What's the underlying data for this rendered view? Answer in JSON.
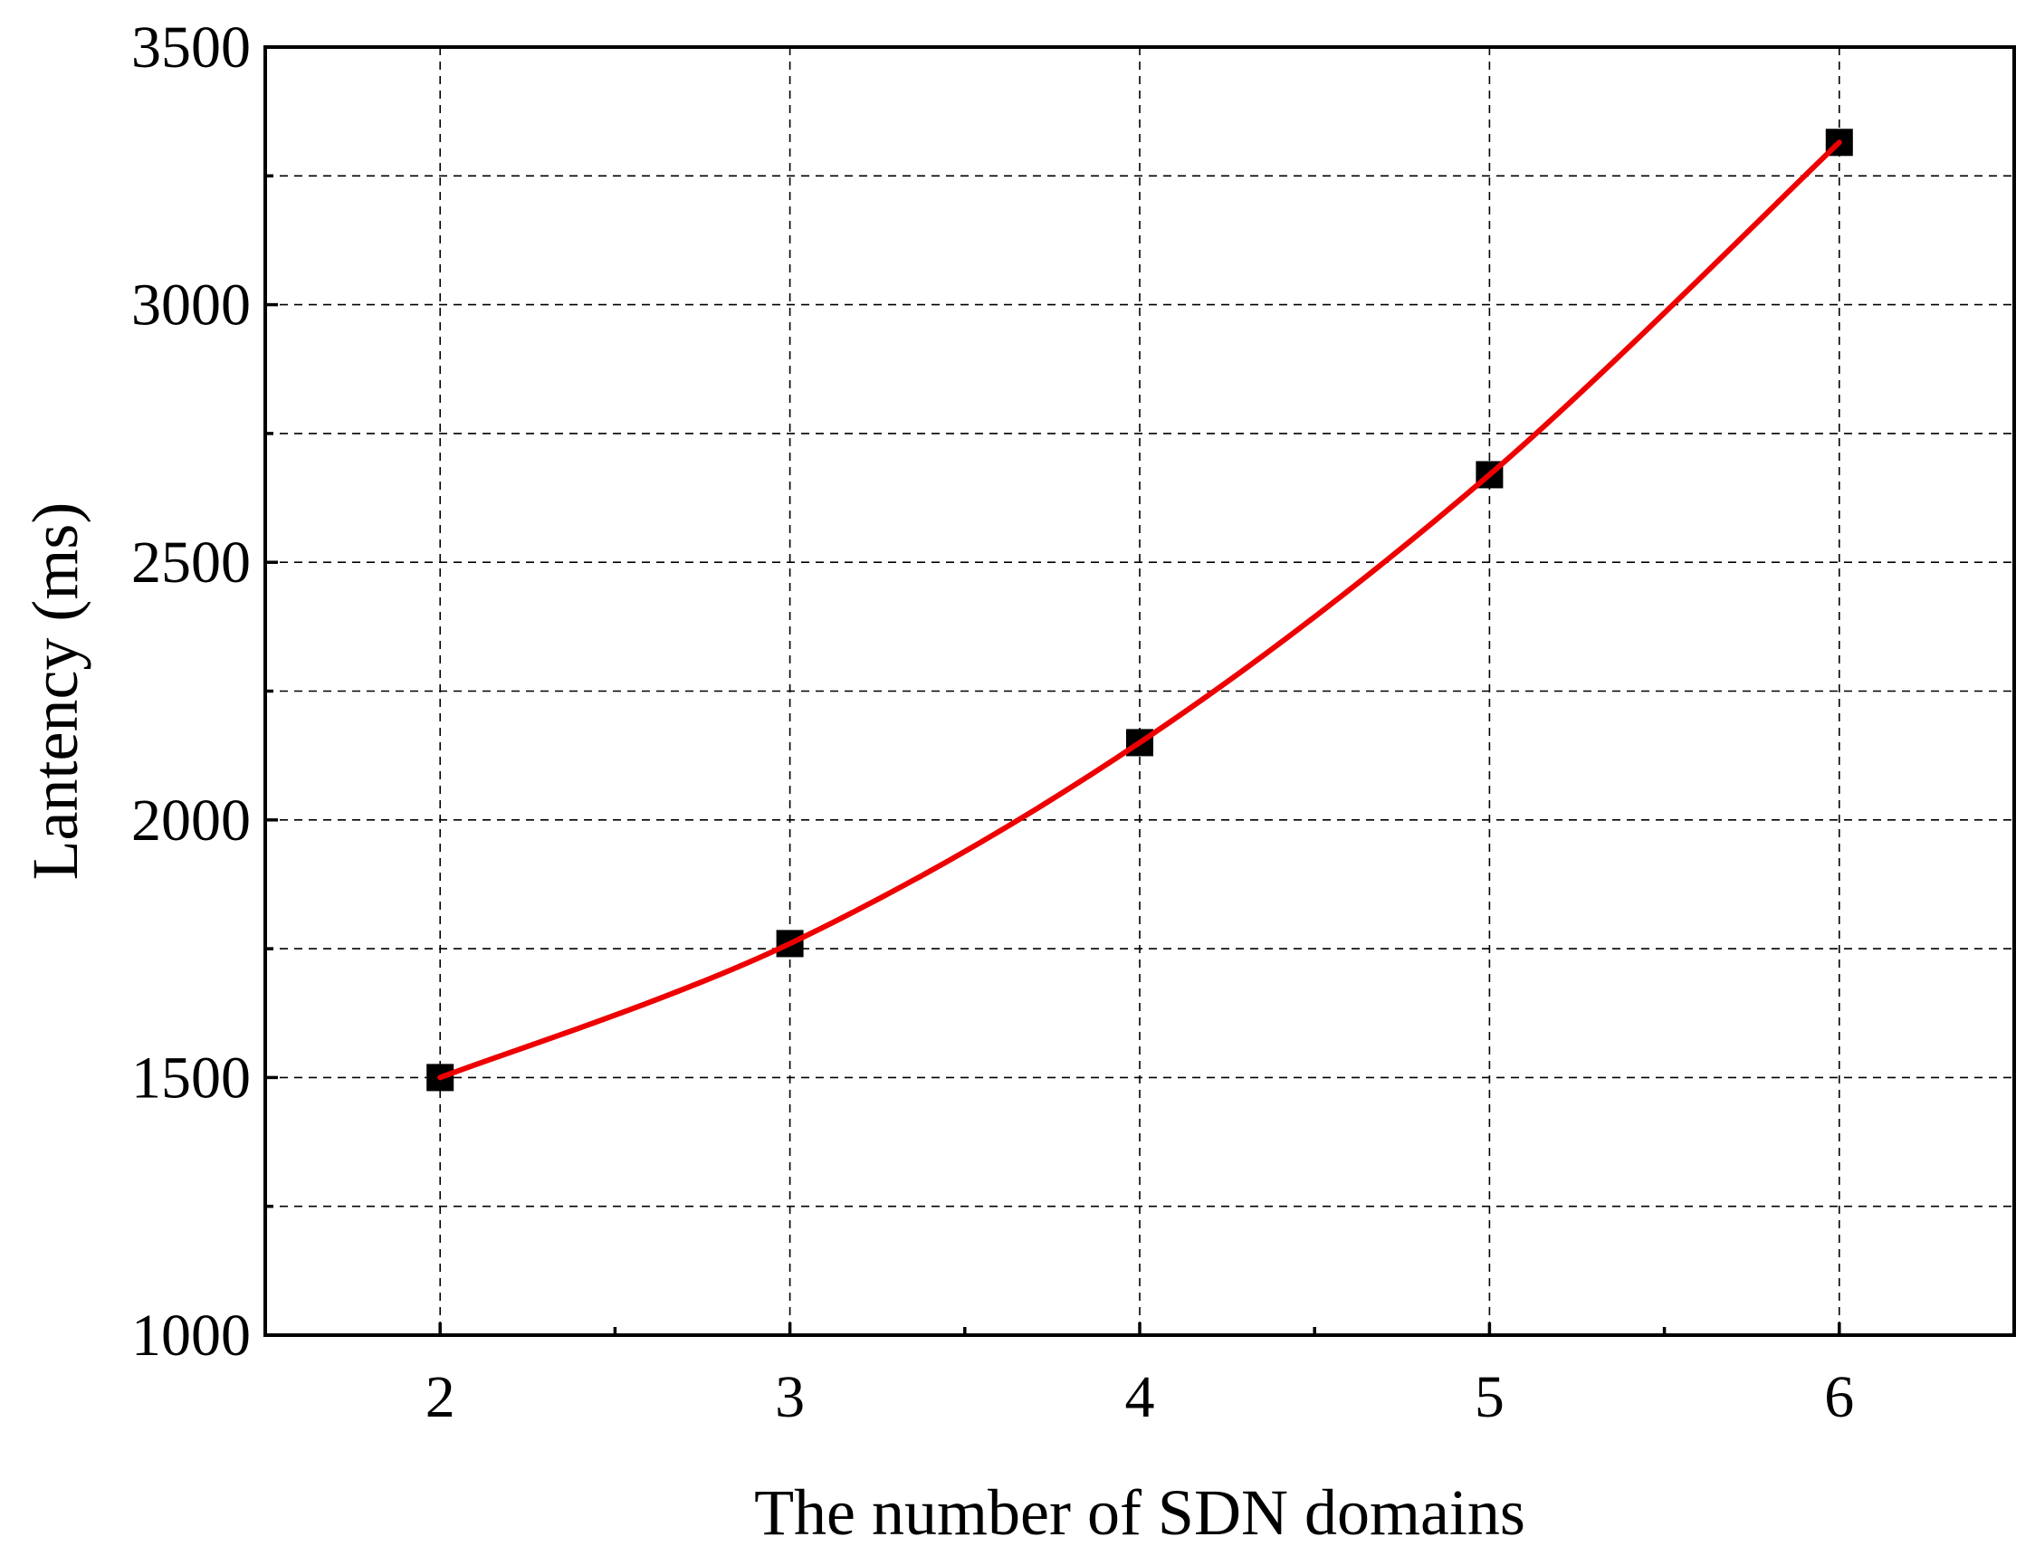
{
  "chart_data": {
    "type": "scatter",
    "xlabel": "The number of SDN domains",
    "ylabel": "Lantency (ms)",
    "xlim": [
      1.5,
      6.5
    ],
    "ylim": [
      1000,
      3500
    ],
    "x_ticks": [
      2,
      3,
      4,
      5,
      6
    ],
    "x_minor_ticks": [
      2.5,
      3.5,
      4.5,
      5.5
    ],
    "y_ticks": [
      1000,
      1500,
      2000,
      2500,
      3000,
      3500
    ],
    "y_minor_ticks": [
      1250,
      1750,
      2250,
      2750,
      3250
    ],
    "grid": true,
    "legend": "none",
    "series": [
      {
        "type": "scatter",
        "marker": "square",
        "color": "#000000",
        "x": [
          2,
          3,
          4,
          5,
          6
        ],
        "y": [
          1500,
          1760,
          2150,
          2670,
          3315
        ]
      },
      {
        "type": "line",
        "smooth": true,
        "color": "#ee0000",
        "x": [
          2,
          3,
          4,
          5,
          6
        ],
        "y": [
          1500,
          1760,
          2150,
          2670,
          3315
        ]
      }
    ]
  }
}
